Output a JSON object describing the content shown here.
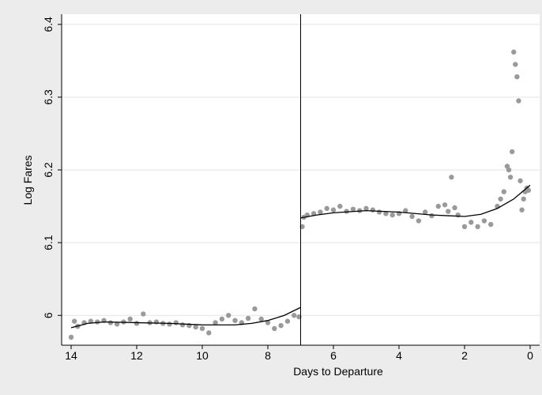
{
  "chart_data": {
    "type": "scatter",
    "y_label": "Log Fares",
    "x_label": "Days to Departure",
    "xlim": [
      14.29,
      -0.29
    ],
    "ylim": [
      5.959,
      6.414
    ],
    "xticks": [
      14,
      12,
      10,
      8,
      6,
      4,
      2,
      0
    ],
    "yticks": [
      6,
      6.1,
      6.2,
      6.3,
      6.4
    ],
    "grid": true,
    "xline": 7,
    "xline_color": "#000000",
    "series": [
      {
        "mode": "markers",
        "color": "#9a9a9a",
        "x": [
          14.0,
          13.9,
          13.8,
          13.6,
          13.4,
          13.2,
          13.0,
          12.8,
          12.6,
          12.4,
          12.2,
          12.0,
          11.8,
          11.6,
          11.4,
          11.2,
          11.0,
          10.8,
          10.6,
          10.4,
          10.2,
          10.0,
          9.8,
          9.6,
          9.4,
          9.2,
          9.0,
          8.8,
          8.6,
          8.4,
          8.2,
          8.0,
          7.8,
          7.6,
          7.4,
          7.2,
          7.05,
          6.95,
          6.9,
          6.8,
          6.6,
          6.4,
          6.2,
          6.0,
          5.8,
          5.6,
          5.4,
          5.2,
          5.0,
          4.8,
          4.6,
          4.4,
          4.2,
          4.0,
          3.8,
          3.6,
          3.4,
          3.2,
          3.0,
          2.8,
          2.6,
          2.5,
          2.4,
          2.3,
          2.2,
          2.0,
          1.8,
          1.6,
          1.4,
          1.2,
          1.0,
          0.9,
          0.8,
          0.7,
          0.65,
          0.6,
          0.55,
          0.5,
          0.45,
          0.4,
          0.35,
          0.3,
          0.25,
          0.2,
          0.15,
          0.1,
          0.05
        ],
        "values": [
          5.97,
          5.992,
          5.985,
          5.99,
          5.992,
          5.991,
          5.993,
          5.99,
          5.988,
          5.991,
          5.995,
          5.989,
          6.002,
          5.99,
          5.991,
          5.989,
          5.988,
          5.99,
          5.987,
          5.986,
          5.984,
          5.982,
          5.976,
          5.99,
          5.995,
          6.0,
          5.993,
          5.99,
          5.996,
          6.009,
          5.995,
          5.99,
          5.982,
          5.986,
          5.992,
          6.0,
          5.998,
          6.122,
          6.135,
          6.138,
          6.14,
          6.142,
          6.147,
          6.145,
          6.15,
          6.143,
          6.146,
          6.144,
          6.147,
          6.145,
          6.142,
          6.14,
          6.138,
          6.14,
          6.144,
          6.136,
          6.13,
          6.142,
          6.137,
          6.15,
          6.152,
          6.143,
          6.19,
          6.148,
          6.138,
          6.122,
          6.128,
          6.122,
          6.13,
          6.125,
          6.15,
          6.16,
          6.17,
          6.205,
          6.2,
          6.19,
          6.225,
          6.362,
          6.345,
          6.328,
          6.295,
          6.185,
          6.145,
          6.16,
          6.17,
          6.175,
          6.172
        ]
      },
      {
        "mode": "line",
        "color": "#000000",
        "x": [
          14,
          13.5,
          13,
          12,
          11,
          10,
          9,
          8.5,
          8,
          7.5,
          7,
          null,
          7,
          6.5,
          6,
          5,
          4,
          3,
          2.5,
          2,
          1.5,
          1,
          0.5,
          0
        ],
        "values": [
          5.983,
          5.989,
          5.991,
          5.99,
          5.989,
          5.987,
          5.987,
          5.989,
          5.993,
          6.0,
          6.011,
          null,
          6.134,
          6.138,
          6.141,
          6.144,
          6.142,
          6.138,
          6.137,
          6.136,
          6.139,
          6.147,
          6.16,
          6.179
        ]
      }
    ]
  }
}
